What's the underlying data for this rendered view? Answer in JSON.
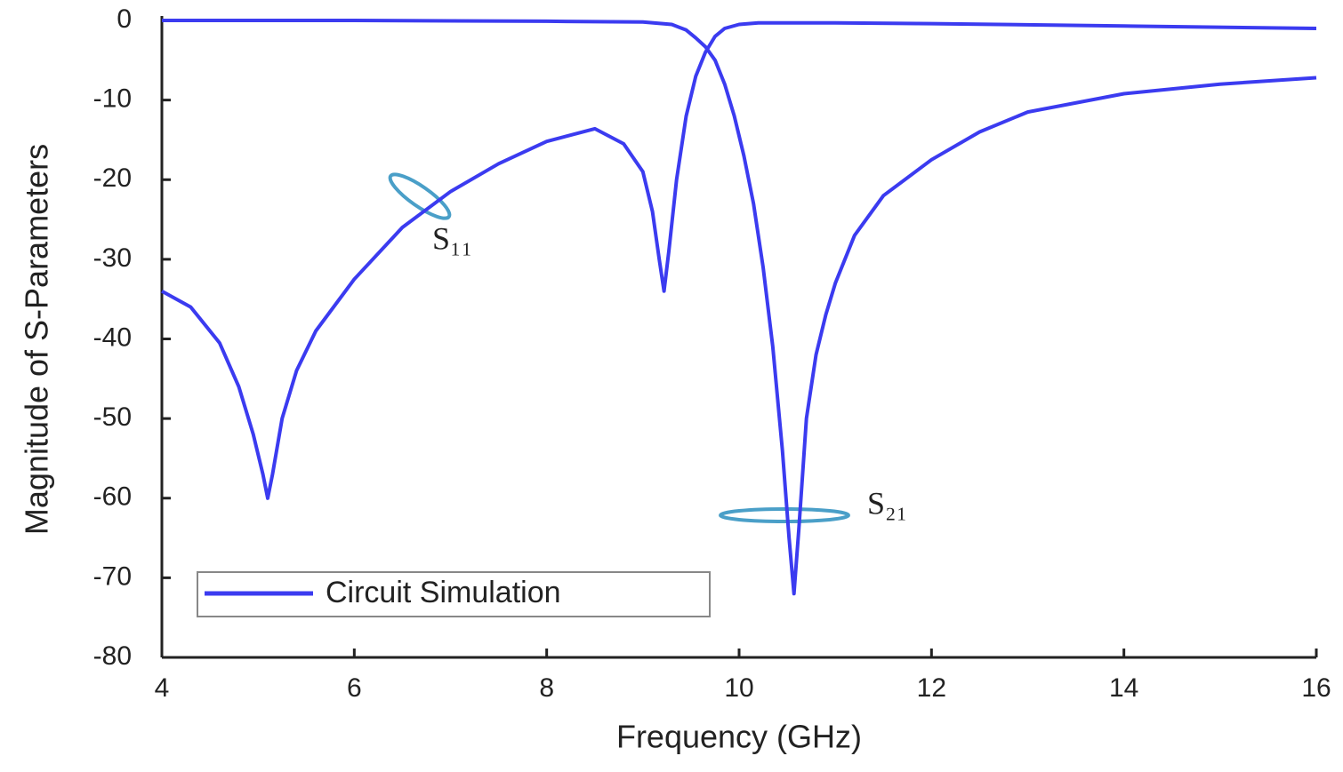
{
  "chart_data": {
    "type": "line",
    "x_label": "Frequency (GHz)",
    "y_label": "Magnitude of S-Parameters",
    "legend_label": "Circuit Simulation",
    "xlim": [
      4,
      16
    ],
    "xticks": [
      4,
      6,
      8,
      10,
      12,
      14,
      16
    ],
    "ylim": [
      -80,
      0
    ],
    "yticks": [
      0,
      -10,
      -20,
      -30,
      -40,
      -50,
      -60,
      -70,
      -80
    ],
    "color": "#3b3bf0",
    "series": [
      {
        "name": "S₁₁",
        "color": "#3b3bf0",
        "x": [
          4,
          4.3,
          4.6,
          4.8,
          4.95,
          5.05,
          5.1,
          5.15,
          5.25,
          5.4,
          5.6,
          6,
          6.5,
          7,
          7.5,
          8,
          8.5,
          8.8,
          9,
          9.1,
          9.17,
          9.22,
          9.27,
          9.35,
          9.45,
          9.55,
          9.65,
          9.75,
          9.85,
          10,
          10.2,
          11,
          12,
          14,
          16
        ],
        "values": [
          -34,
          -36,
          -40.5,
          -46,
          -52,
          -57,
          -60,
          -57,
          -50,
          -44,
          -39,
          -32.5,
          -26,
          -21.5,
          -18,
          -15.2,
          -13.6,
          -15.5,
          -19,
          -24,
          -30,
          -34,
          -29,
          -20,
          -12,
          -7,
          -4,
          -2,
          -1,
          -0.5,
          -0.3,
          -0.3,
          -0.4,
          -0.7,
          -1
        ]
      },
      {
        "name": "S₂₁",
        "color": "#3b3bf0",
        "x": [
          4,
          6,
          8,
          9,
          9.3,
          9.45,
          9.55,
          9.65,
          9.75,
          9.85,
          9.95,
          10.05,
          10.15,
          10.25,
          10.35,
          10.45,
          10.52,
          10.57,
          10.62,
          10.7,
          10.8,
          10.9,
          11,
          11.2,
          11.5,
          12,
          12.5,
          13,
          14,
          15,
          16
        ],
        "values": [
          0,
          0,
          -0.1,
          -0.2,
          -0.5,
          -1.2,
          -2.2,
          -3.3,
          -5,
          -8,
          -12,
          -17,
          -23,
          -31,
          -41,
          -54,
          -65,
          -72,
          -64,
          -50,
          -42,
          -37,
          -33,
          -27,
          -22,
          -17.5,
          -14,
          -11.5,
          -9.2,
          -8,
          -7.2
        ]
      }
    ]
  }
}
